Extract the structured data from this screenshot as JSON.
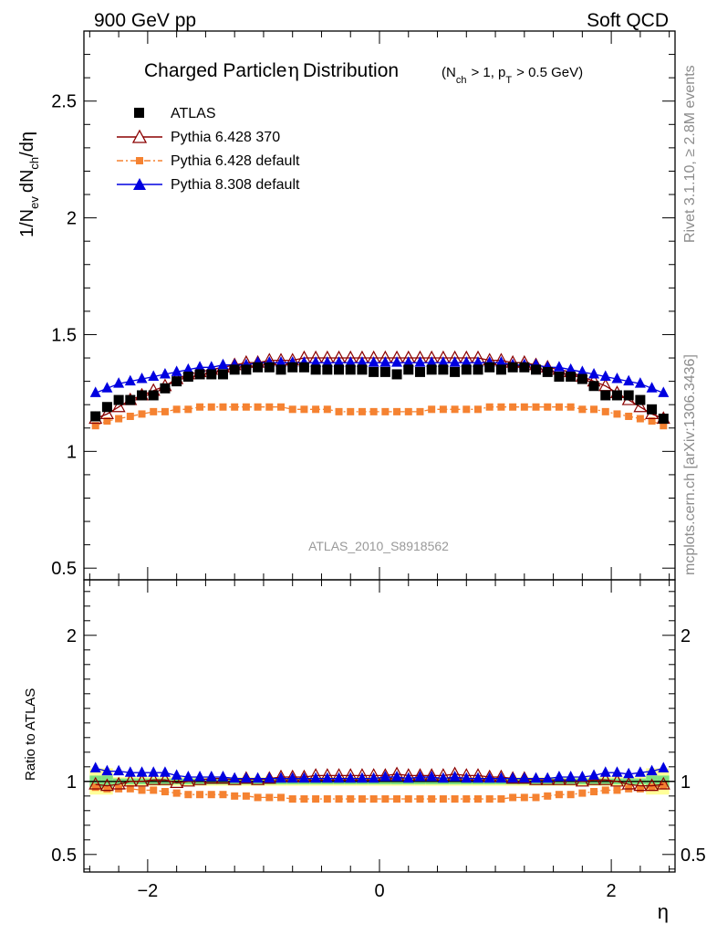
{
  "header": {
    "left": "900 GeV pp",
    "right": "Soft QCD"
  },
  "side_labels": {
    "top": "Rivet 3.1.10, ≥ 2.8M events",
    "bottom": "mcplots.cern.ch [arXiv:1306.3436]"
  },
  "watermark": "ATLAS_2010_S8918562",
  "colors": {
    "atlas": "#000000",
    "p6_370": "#8b0000",
    "p6_def": "#f58231",
    "p8_def": "#0000e0",
    "band_stat": "#7fe07f",
    "band_syst": "#ffff99"
  },
  "chart_data": [
    {
      "type": "scatter",
      "panel": "main",
      "title": "Charged Particle η Distribution",
      "title_main": "Charged Particle",
      "title_eta": "η",
      "title_rest": "Distribution",
      "title_cond": "(N",
      "title_cond_sub1": "ch",
      "title_cond_mid": "> 1, p",
      "title_cond_sub2": "T",
      "title_cond_end": "> 0.5 GeV)",
      "xlabel": "η",
      "ylabel": "1/N_ev dN_ch/dη",
      "ylabel_parts": {
        "a": "1/N",
        "a_sub": "ev",
        "b": "dN",
        "b_sub": "ch",
        "c": "/dη"
      },
      "xlim": [
        -2.55,
        2.55
      ],
      "ylim": [
        0.45,
        2.8
      ],
      "x_ticks": [
        -2,
        0,
        2
      ],
      "y_ticks": [
        0.5,
        1,
        1.5,
        2,
        2.5
      ],
      "y_tick_labels": [
        "0.5",
        "1",
        "1.5",
        "2",
        "2.5"
      ],
      "legend_position": "top-left",
      "x": [
        -2.45,
        -2.35,
        -2.25,
        -2.15,
        -2.05,
        -1.95,
        -1.85,
        -1.75,
        -1.65,
        -1.55,
        -1.45,
        -1.35,
        -1.25,
        -1.15,
        -1.05,
        -0.95,
        -0.85,
        -0.75,
        -0.65,
        -0.55,
        -0.45,
        -0.35,
        -0.25,
        -0.15,
        -0.05,
        0.05,
        0.15,
        0.25,
        0.35,
        0.45,
        0.55,
        0.65,
        0.75,
        0.85,
        0.95,
        1.05,
        1.15,
        1.25,
        1.35,
        1.45,
        1.55,
        1.65,
        1.75,
        1.85,
        1.95,
        2.05,
        2.15,
        2.25,
        2.35,
        2.45
      ],
      "series": [
        {
          "name": "ATLAS",
          "marker": "square",
          "color_key": "atlas",
          "values": [
            1.15,
            1.19,
            1.22,
            1.22,
            1.24,
            1.24,
            1.27,
            1.3,
            1.32,
            1.33,
            1.33,
            1.33,
            1.35,
            1.35,
            1.36,
            1.36,
            1.35,
            1.36,
            1.36,
            1.35,
            1.35,
            1.35,
            1.35,
            1.35,
            1.34,
            1.34,
            1.33,
            1.35,
            1.34,
            1.35,
            1.35,
            1.34,
            1.35,
            1.35,
            1.36,
            1.35,
            1.36,
            1.36,
            1.35,
            1.34,
            1.32,
            1.32,
            1.31,
            1.28,
            1.24,
            1.24,
            1.24,
            1.22,
            1.18,
            1.14
          ]
        },
        {
          "name": "Pythia 6.428 370",
          "marker": "triangle-open",
          "color_key": "p6_370",
          "values": [
            1.14,
            1.16,
            1.19,
            1.22,
            1.24,
            1.26,
            1.28,
            1.31,
            1.33,
            1.34,
            1.35,
            1.36,
            1.37,
            1.38,
            1.38,
            1.39,
            1.39,
            1.39,
            1.4,
            1.4,
            1.4,
            1.4,
            1.4,
            1.4,
            1.4,
            1.4,
            1.4,
            1.4,
            1.4,
            1.4,
            1.4,
            1.4,
            1.4,
            1.4,
            1.39,
            1.39,
            1.38,
            1.38,
            1.37,
            1.36,
            1.35,
            1.34,
            1.32,
            1.3,
            1.28,
            1.25,
            1.22,
            1.19,
            1.16,
            1.14
          ]
        },
        {
          "name": "Pythia 6.428 default",
          "marker": "square-small",
          "dashed": true,
          "color_key": "p6_def",
          "values": [
            1.11,
            1.13,
            1.14,
            1.15,
            1.16,
            1.17,
            1.17,
            1.18,
            1.18,
            1.19,
            1.19,
            1.19,
            1.19,
            1.19,
            1.19,
            1.19,
            1.19,
            1.18,
            1.18,
            1.18,
            1.18,
            1.17,
            1.17,
            1.17,
            1.17,
            1.17,
            1.17,
            1.17,
            1.17,
            1.18,
            1.18,
            1.18,
            1.18,
            1.18,
            1.19,
            1.19,
            1.19,
            1.19,
            1.19,
            1.19,
            1.19,
            1.19,
            1.18,
            1.18,
            1.17,
            1.16,
            1.15,
            1.14,
            1.13,
            1.11
          ]
        },
        {
          "name": "Pythia 8.308 default",
          "marker": "triangle-filled",
          "color_key": "p8_def",
          "values": [
            1.25,
            1.27,
            1.29,
            1.3,
            1.31,
            1.32,
            1.33,
            1.34,
            1.35,
            1.36,
            1.36,
            1.37,
            1.37,
            1.37,
            1.38,
            1.38,
            1.38,
            1.38,
            1.38,
            1.38,
            1.38,
            1.38,
            1.38,
            1.38,
            1.38,
            1.38,
            1.38,
            1.38,
            1.38,
            1.38,
            1.38,
            1.38,
            1.38,
            1.38,
            1.38,
            1.38,
            1.37,
            1.37,
            1.37,
            1.36,
            1.36,
            1.35,
            1.34,
            1.33,
            1.32,
            1.31,
            1.3,
            1.29,
            1.27,
            1.25
          ]
        }
      ]
    },
    {
      "type": "scatter",
      "panel": "ratio",
      "ylabel": "Ratio to ATLAS",
      "xlabel": "η",
      "xlim": [
        -2.55,
        2.55
      ],
      "ylim": [
        0.38,
        2.38
      ],
      "x_ticks": [
        -2,
        0,
        2
      ],
      "x_tick_labels": [
        "−2",
        "0",
        "2"
      ],
      "y_ticks": [
        0.5,
        1,
        2
      ],
      "y_tick_labels": [
        "0.5",
        "1",
        "2"
      ],
      "x": [
        -2.45,
        -2.35,
        -2.25,
        -2.15,
        -2.05,
        -1.95,
        -1.85,
        -1.75,
        -1.65,
        -1.55,
        -1.45,
        -1.35,
        -1.25,
        -1.15,
        -1.05,
        -0.95,
        -0.85,
        -0.75,
        -0.65,
        -0.55,
        -0.45,
        -0.35,
        -0.25,
        -0.15,
        -0.05,
        0.05,
        0.15,
        0.25,
        0.35,
        0.45,
        0.55,
        0.65,
        0.75,
        0.85,
        0.95,
        1.05,
        1.15,
        1.25,
        1.35,
        1.45,
        1.55,
        1.65,
        1.75,
        1.85,
        1.95,
        2.05,
        2.15,
        2.25,
        2.35,
        2.45
      ],
      "band_syst_halfwidth": [
        0.09,
        0.09,
        0.03,
        0.03,
        0.03,
        0.03,
        0.03,
        0.03,
        0.03,
        0.03,
        0.03,
        0.03,
        0.03,
        0.03,
        0.03,
        0.03,
        0.03,
        0.03,
        0.03,
        0.03,
        0.03,
        0.03,
        0.03,
        0.03,
        0.03,
        0.03,
        0.03,
        0.03,
        0.03,
        0.03,
        0.03,
        0.03,
        0.03,
        0.03,
        0.03,
        0.03,
        0.03,
        0.03,
        0.03,
        0.03,
        0.03,
        0.03,
        0.03,
        0.03,
        0.03,
        0.03,
        0.03,
        0.03,
        0.09,
        0.09
      ],
      "band_stat_halfwidth": [
        0.04,
        0.04,
        0.02,
        0.02,
        0.02,
        0.02,
        0.02,
        0.02,
        0.02,
        0.02,
        0.02,
        0.02,
        0.02,
        0.02,
        0.02,
        0.02,
        0.02,
        0.02,
        0.02,
        0.02,
        0.02,
        0.02,
        0.02,
        0.02,
        0.02,
        0.02,
        0.02,
        0.02,
        0.02,
        0.02,
        0.02,
        0.02,
        0.02,
        0.02,
        0.02,
        0.02,
        0.02,
        0.02,
        0.02,
        0.02,
        0.02,
        0.02,
        0.02,
        0.02,
        0.02,
        0.02,
        0.02,
        0.02,
        0.04,
        0.04
      ],
      "series": [
        {
          "name": "Pythia 6.428 370",
          "marker": "triangle-open",
          "color_key": "p6_370",
          "values": [
            0.98,
            0.97,
            0.98,
            1.0,
            1.0,
            1.01,
            1.01,
            0.99,
            1.0,
            1.01,
            1.02,
            1.02,
            1.01,
            1.02,
            1.01,
            1.02,
            1.03,
            1.03,
            1.03,
            1.04,
            1.04,
            1.04,
            1.04,
            1.04,
            1.04,
            1.04,
            1.05,
            1.04,
            1.04,
            1.04,
            1.04,
            1.05,
            1.04,
            1.04,
            1.03,
            1.03,
            1.02,
            1.02,
            1.01,
            1.01,
            1.01,
            1.01,
            1.0,
            1.01,
            1.01,
            1.0,
            0.98,
            0.97,
            0.97,
            0.98
          ]
        },
        {
          "name": "Pythia 6.428 default",
          "marker": "square-small",
          "dashed": true,
          "color_key": "p6_def",
          "values": [
            0.96,
            0.95,
            0.95,
            0.95,
            0.94,
            0.94,
            0.93,
            0.92,
            0.91,
            0.91,
            0.91,
            0.91,
            0.9,
            0.9,
            0.89,
            0.89,
            0.89,
            0.88,
            0.88,
            0.88,
            0.88,
            0.88,
            0.88,
            0.88,
            0.88,
            0.88,
            0.88,
            0.88,
            0.88,
            0.88,
            0.88,
            0.88,
            0.88,
            0.88,
            0.88,
            0.88,
            0.89,
            0.89,
            0.89,
            0.9,
            0.91,
            0.91,
            0.92,
            0.93,
            0.94,
            0.94,
            0.95,
            0.95,
            0.96,
            0.97
          ]
        },
        {
          "name": "Pythia 8.308 default",
          "marker": "triangle-filled",
          "color_key": "p8_def",
          "values": [
            1.09,
            1.07,
            1.07,
            1.06,
            1.06,
            1.06,
            1.06,
            1.04,
            1.03,
            1.03,
            1.03,
            1.03,
            1.02,
            1.02,
            1.02,
            1.02,
            1.02,
            1.02,
            1.02,
            1.02,
            1.02,
            1.02,
            1.02,
            1.02,
            1.02,
            1.03,
            1.03,
            1.02,
            1.03,
            1.03,
            1.02,
            1.03,
            1.02,
            1.02,
            1.02,
            1.02,
            1.02,
            1.02,
            1.02,
            1.02,
            1.03,
            1.03,
            1.03,
            1.04,
            1.06,
            1.06,
            1.05,
            1.06,
            1.07,
            1.09
          ]
        }
      ]
    }
  ]
}
